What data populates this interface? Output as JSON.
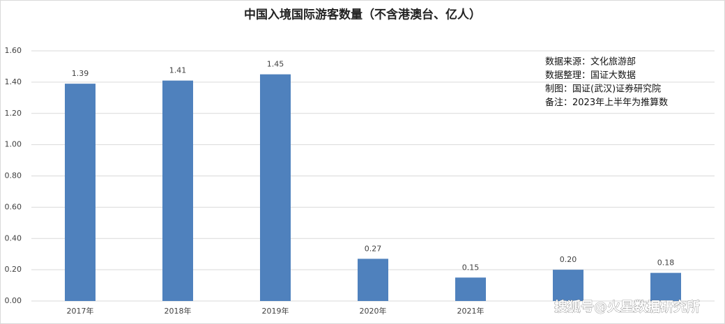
{
  "chart_data": {
    "type": "bar",
    "title": "中国入境国际游客数量（不含港澳台、亿人）",
    "categories": [
      "2017年",
      "2018年",
      "2019年",
      "2020年",
      "2021年",
      null,
      null
    ],
    "values": [
      1.39,
      1.41,
      1.45,
      0.27,
      0.15,
      0.2,
      0.18
    ],
    "value_labels": [
      "1.39",
      "1.41",
      "1.45",
      "0.27",
      "0.15",
      "0.20",
      "0.18"
    ],
    "color": "#4f81bd",
    "ylim": [
      0,
      1.6
    ],
    "yticks": [
      {
        "value": 0,
        "label": "0.00"
      },
      {
        "value": 0.2,
        "label": "0.20"
      },
      {
        "value": 0.4,
        "label": "0.40"
      },
      {
        "value": 0.6,
        "label": "0.60"
      },
      {
        "value": 0.8,
        "label": "0.80"
      },
      {
        "value": 1.0,
        "label": "1.00"
      },
      {
        "value": 1.2,
        "label": "1.20"
      },
      {
        "value": 1.4,
        "label": "1.40"
      },
      {
        "value": 1.6,
        "label": "1.60"
      }
    ],
    "grid": true,
    "annotations": [
      "数据来源：文化旅游部",
      "数据整理：国证大数据",
      "制图：国证(武汉)证券研究院",
      "备注：2023年上半年为推算数"
    ],
    "watermark": "搜狐号@火星数据研究所"
  }
}
